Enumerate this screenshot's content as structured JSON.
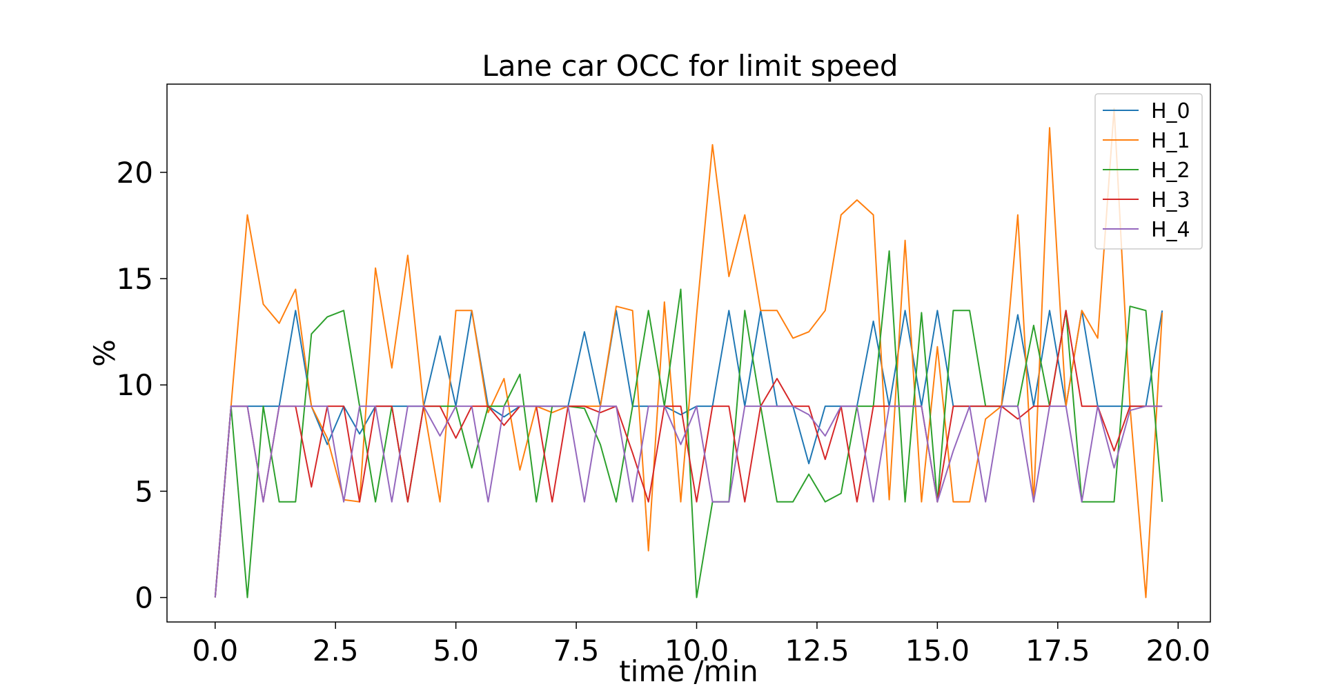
{
  "chart_data": {
    "type": "line",
    "title": "Lane car OCC for limit speed",
    "xlabel": "time /min",
    "ylabel": "%",
    "xlim": [
      -1.0,
      20.67
    ],
    "ylim": [
      -1.15,
      24.15
    ],
    "xticks": [
      0.0,
      2.5,
      5.0,
      7.5,
      10.0,
      12.5,
      15.0,
      17.5,
      20.0
    ],
    "xtick_labels": [
      "0.0",
      "2.5",
      "5.0",
      "7.5",
      "10.0",
      "12.5",
      "15.0",
      "17.5",
      "20.0"
    ],
    "yticks": [
      0,
      5,
      10,
      15,
      20
    ],
    "ytick_labels": [
      "0",
      "5",
      "10",
      "15",
      "20"
    ],
    "grid": false,
    "legend_position": "top-right",
    "x": [
      0.0,
      0.33,
      0.67,
      1.0,
      1.33,
      1.67,
      2.0,
      2.33,
      2.67,
      3.0,
      3.33,
      3.67,
      4.0,
      4.33,
      4.67,
      5.0,
      5.33,
      5.67,
      6.0,
      6.33,
      6.67,
      7.0,
      7.33,
      7.67,
      8.0,
      8.33,
      8.67,
      9.0,
      9.33,
      9.67,
      10.0,
      10.33,
      10.67,
      11.0,
      11.33,
      11.67,
      12.0,
      12.33,
      12.67,
      13.0,
      13.33,
      13.67,
      14.0,
      14.33,
      14.67,
      15.0,
      15.33,
      15.67,
      16.0,
      16.33,
      16.67,
      17.0,
      17.33,
      17.67,
      18.0,
      18.33,
      18.67,
      19.0,
      19.33,
      19.67
    ],
    "series": [
      {
        "name": "H_0",
        "color": "#1f77b4",
        "values": [
          0,
          9,
          9,
          9,
          9,
          13.5,
          9,
          7.2,
          9,
          7.7,
          9,
          9,
          9,
          9,
          12.3,
          9,
          13.5,
          9,
          8.5,
          9,
          9,
          9,
          9,
          12.5,
          9,
          13.5,
          9,
          9,
          9,
          8.6,
          9,
          9,
          13.5,
          9,
          13.5,
          9,
          9,
          6.3,
          9,
          9,
          9,
          13,
          9,
          13.5,
          9,
          13.5,
          9,
          9,
          9,
          9,
          13.3,
          9,
          13.5,
          9,
          13.5,
          9,
          9,
          9,
          9,
          13.5
        ]
      },
      {
        "name": "H_1",
        "color": "#ff7f0e",
        "values": [
          0,
          9,
          18,
          13.8,
          12.9,
          14.5,
          9,
          7.5,
          4.6,
          4.5,
          15.5,
          10.8,
          16.1,
          9,
          4.5,
          13.5,
          13.5,
          8.7,
          10.3,
          6,
          9,
          8.7,
          9,
          9,
          9,
          13.7,
          13.5,
          2.2,
          13.9,
          4.5,
          13.3,
          21.3,
          15.1,
          18,
          13.5,
          13.5,
          12.2,
          12.5,
          13.5,
          18,
          18.7,
          18,
          4.6,
          16.8,
          4.5,
          11.8,
          4.5,
          4.5,
          8.4,
          9,
          18,
          4.5,
          22.1,
          9,
          13.5,
          12.2,
          23,
          9,
          0,
          13.4
        ]
      },
      {
        "name": "H_2",
        "color": "#2ca02c",
        "values": [
          0,
          9,
          0,
          9,
          4.5,
          4.5,
          12.4,
          13.2,
          13.5,
          9,
          4.5,
          9,
          4.5,
          9,
          9,
          9,
          6.1,
          9,
          9,
          10.5,
          4.5,
          9,
          9,
          8.9,
          7.2,
          4.5,
          9,
          13.5,
          9,
          14.5,
          0,
          4.5,
          4.5,
          13.5,
          9,
          4.5,
          4.5,
          5.8,
          4.5,
          4.9,
          9,
          9,
          16.3,
          4.5,
          13.4,
          4.5,
          13.5,
          13.5,
          9,
          9,
          9,
          12.8,
          9,
          13.5,
          4.5,
          4.5,
          4.5,
          13.7,
          13.5,
          4.5
        ]
      },
      {
        "name": "H_3",
        "color": "#d62728",
        "values": [
          0,
          9,
          9,
          4.5,
          9,
          9,
          5.2,
          9,
          9,
          4.5,
          9,
          9,
          4.5,
          9,
          9,
          7.5,
          9,
          9,
          8.1,
          9,
          9,
          4.5,
          9,
          9,
          8.7,
          9,
          6.8,
          4.5,
          9,
          9,
          4.5,
          9,
          9,
          4.5,
          9,
          10.3,
          9,
          9,
          6.5,
          9,
          4.5,
          9,
          9,
          9,
          9,
          4.5,
          9,
          9,
          9,
          9,
          8.4,
          9,
          9,
          13.5,
          9,
          9,
          6.9,
          9,
          9,
          9
        ]
      },
      {
        "name": "H_4",
        "color": "#9467bd",
        "values": [
          0,
          9,
          9,
          4.5,
          9,
          9,
          9,
          9,
          4.5,
          9,
          9,
          4.5,
          9,
          9,
          7.6,
          9,
          9,
          4.5,
          9,
          9,
          9,
          9,
          9,
          4.5,
          9,
          9,
          4.5,
          9,
          9,
          7.2,
          9,
          4.5,
          4.5,
          9,
          9,
          9,
          9,
          8.6,
          7.6,
          9,
          9,
          4.5,
          9,
          9,
          9,
          4.5,
          6.9,
          9,
          4.5,
          9,
          9,
          4.5,
          9,
          9,
          4.5,
          9,
          6.1,
          8.8,
          9,
          9
        ]
      }
    ]
  }
}
